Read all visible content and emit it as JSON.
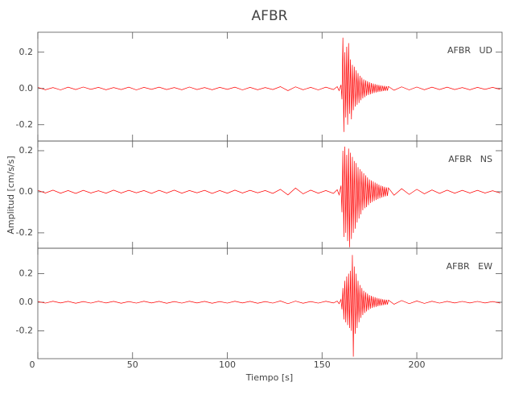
{
  "chart_data": {
    "type": "line",
    "title": "AFBR",
    "xlabel": "Tiempo [s]",
    "ylabel": "Amplitud [cm/s/s]",
    "xlim": [
      0,
      245
    ],
    "xticks": [
      0,
      50,
      100,
      150,
      200
    ],
    "x": [
      0,
      4,
      8,
      12,
      16,
      20,
      24,
      28,
      32,
      36,
      40,
      44,
      48,
      52,
      56,
      60,
      64,
      68,
      72,
      76,
      80,
      84,
      88,
      92,
      96,
      100,
      104,
      108,
      112,
      116,
      120,
      124,
      128,
      132,
      136,
      140,
      144,
      148,
      152,
      156,
      158,
      159,
      160,
      160.5,
      161,
      161.5,
      162,
      162.5,
      163,
      163.5,
      164,
      164.5,
      165,
      165.5,
      166,
      166.5,
      167,
      167.5,
      168,
      168.5,
      169,
      169.5,
      170,
      170.5,
      171,
      171.5,
      172,
      172.5,
      173,
      173.5,
      174,
      174.5,
      175,
      175.5,
      176,
      176.5,
      177,
      177.5,
      178,
      178.5,
      179,
      179.5,
      180,
      180.5,
      181,
      181.5,
      182,
      182.5,
      183,
      183.5,
      184,
      184.5,
      185,
      188,
      192,
      196,
      200,
      204,
      208,
      212,
      216,
      220,
      224,
      228,
      232,
      236,
      240,
      244
    ],
    "panels": [
      {
        "name": "AFBR   UD",
        "color": "#ff0000",
        "ylim": [
          -0.29,
          0.31
        ],
        "yticks": [
          0.2,
          {
            "value": 0,
            "label": "0.0"
          },
          -0.2
        ],
        "values": [
          0.006,
          -0.007,
          0.005,
          -0.008,
          0.007,
          -0.006,
          0.008,
          -0.005,
          0.006,
          -0.007,
          0.005,
          -0.006,
          0.007,
          -0.008,
          0.006,
          -0.005,
          0.007,
          -0.006,
          0.005,
          -0.007,
          0.008,
          -0.006,
          0.005,
          -0.007,
          0.006,
          -0.005,
          0.007,
          -0.008,
          0.006,
          -0.007,
          0.005,
          -0.006,
          0.01,
          -0.012,
          0.009,
          -0.007,
          0.006,
          -0.008,
          0.007,
          -0.006,
          0.01,
          -0.012,
          0.02,
          -0.06,
          0.28,
          -0.24,
          0.2,
          -0.16,
          0.23,
          -0.2,
          0.25,
          -0.14,
          0.16,
          -0.17,
          0.13,
          -0.12,
          0.12,
          -0.1,
          0.1,
          -0.09,
          0.085,
          -0.08,
          0.07,
          -0.065,
          0.06,
          -0.055,
          0.05,
          -0.048,
          0.045,
          -0.04,
          0.04,
          -0.036,
          0.035,
          -0.032,
          0.03,
          -0.028,
          0.027,
          -0.025,
          0.024,
          -0.022,
          0.021,
          -0.02,
          0.019,
          -0.018,
          0.017,
          -0.016,
          0.015,
          -0.014,
          0.014,
          -0.013,
          0.012,
          -0.012,
          0.011,
          -0.01,
          0.009,
          -0.008,
          0.008,
          -0.007,
          0.007,
          -0.006,
          0.007,
          -0.006,
          0.005,
          -0.007,
          0.006,
          -0.005,
          0.006,
          -0.005
        ]
      },
      {
        "name": "AFBR   NS",
        "color": "#ff0000",
        "ylim": [
          -0.275,
          0.247
        ],
        "yticks": [
          0.2,
          {
            "value": 0,
            "label": "0.0"
          },
          -0.2
        ],
        "values": [
          0.007,
          -0.006,
          0.008,
          -0.007,
          0.006,
          -0.008,
          0.007,
          -0.006,
          0.005,
          -0.007,
          0.008,
          -0.006,
          0.007,
          -0.005,
          0.006,
          -0.008,
          0.007,
          -0.006,
          0.008,
          -0.007,
          0.006,
          -0.005,
          0.007,
          -0.008,
          0.006,
          -0.007,
          0.008,
          -0.006,
          0.007,
          -0.005,
          0.006,
          -0.008,
          0.012,
          -0.015,
          0.018,
          -0.01,
          0.008,
          -0.007,
          0.006,
          -0.008,
          0.01,
          -0.015,
          0.03,
          -0.1,
          0.2,
          -0.22,
          0.22,
          -0.2,
          0.18,
          -0.24,
          0.21,
          -0.27,
          0.19,
          -0.23,
          0.17,
          -0.2,
          0.15,
          -0.18,
          0.14,
          -0.15,
          0.12,
          -0.13,
          0.11,
          -0.11,
          0.1,
          -0.09,
          0.09,
          -0.08,
          0.08,
          -0.075,
          0.07,
          -0.065,
          0.06,
          -0.055,
          0.055,
          -0.05,
          0.05,
          -0.045,
          0.045,
          -0.04,
          0.04,
          -0.036,
          0.035,
          -0.032,
          0.03,
          -0.028,
          0.027,
          -0.025,
          0.024,
          -0.022,
          0.021,
          -0.02,
          0.019,
          -0.017,
          0.015,
          -0.013,
          0.012,
          -0.01,
          0.009,
          -0.008,
          0.008,
          -0.007,
          0.007,
          -0.006,
          0.007,
          -0.006,
          0.005,
          -0.006
        ]
      },
      {
        "name": "AFBR   EW",
        "color": "#ff0000",
        "ylim": [
          -0.394,
          0.377
        ],
        "yticks": [
          0.2,
          {
            "value": 0,
            "label": "0.0"
          },
          -0.2
        ],
        "values": [
          0.005,
          -0.006,
          0.007,
          -0.005,
          0.006,
          -0.007,
          0.005,
          -0.006,
          0.007,
          -0.005,
          0.006,
          -0.007,
          0.005,
          -0.006,
          0.007,
          -0.005,
          0.006,
          -0.007,
          0.005,
          -0.006,
          0.007,
          -0.005,
          0.006,
          -0.007,
          0.005,
          -0.006,
          0.007,
          -0.005,
          0.006,
          -0.007,
          0.005,
          -0.006,
          0.009,
          -0.01,
          0.008,
          -0.007,
          0.005,
          -0.006,
          0.007,
          -0.005,
          0.008,
          -0.01,
          0.02,
          -0.05,
          0.1,
          -0.12,
          0.15,
          -0.14,
          0.18,
          -0.16,
          0.2,
          -0.18,
          0.22,
          -0.2,
          0.33,
          -0.38,
          0.25,
          -0.22,
          0.2,
          -0.18,
          0.15,
          -0.14,
          0.12,
          -0.11,
          0.1,
          -0.09,
          0.08,
          -0.075,
          0.07,
          -0.065,
          0.06,
          -0.055,
          0.05,
          -0.045,
          0.045,
          -0.04,
          0.04,
          -0.036,
          0.035,
          -0.032,
          0.03,
          -0.028,
          0.027,
          -0.025,
          0.024,
          -0.022,
          0.021,
          -0.02,
          0.019,
          -0.018,
          0.017,
          -0.016,
          0.015,
          -0.014,
          0.012,
          -0.01,
          0.009,
          -0.008,
          0.007,
          -0.006,
          0.006,
          -0.005,
          0.006,
          -0.005,
          0.006,
          -0.005,
          0.005,
          -0.006
        ]
      }
    ]
  }
}
